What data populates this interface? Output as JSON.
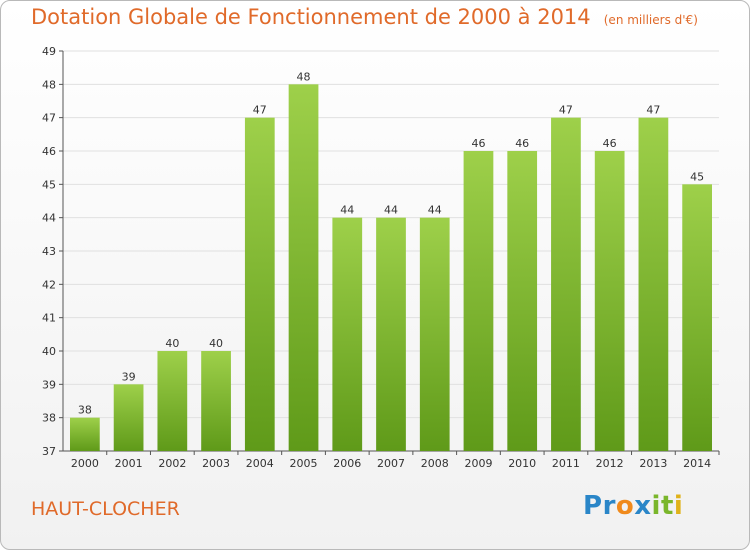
{
  "title": "Dotation Globale de Fonctionnement de 2000 à 2014",
  "subtitle": "(en milliers d'€)",
  "commune": "HAUT-CLOCHER",
  "logo": {
    "text": "Proxiti",
    "letters": [
      {
        "ch": "P",
        "color": "#2a86c8"
      },
      {
        "ch": "r",
        "color": "#2a86c8"
      },
      {
        "ch": "o",
        "color": "#f08a1c"
      },
      {
        "ch": "x",
        "color": "#2a86c8"
      },
      {
        "ch": "i",
        "color": "#7ab62b"
      },
      {
        "ch": "t",
        "color": "#7ab62b"
      },
      {
        "ch": "i",
        "color": "#e0b21a"
      }
    ]
  },
  "colors": {
    "title": "#e06a2a",
    "bar_light": "#9ed04a",
    "bar_dark": "#5f9a19",
    "grid": "#e0e0e0"
  },
  "chart_data": {
    "type": "bar",
    "title": "Dotation Globale de Fonctionnement de 2000 à 2014",
    "subtitle": "(en milliers d'€)",
    "categories": [
      "2000",
      "2001",
      "2002",
      "2003",
      "2004",
      "2005",
      "2006",
      "2007",
      "2008",
      "2009",
      "2010",
      "2011",
      "2012",
      "2013",
      "2014"
    ],
    "values": [
      38,
      39,
      40,
      40,
      47,
      48,
      44,
      44,
      44,
      46,
      46,
      47,
      46,
      47,
      45
    ],
    "ylim": [
      37,
      49
    ],
    "yticks": [
      37,
      38,
      39,
      40,
      41,
      42,
      43,
      44,
      45,
      46,
      47,
      48,
      49
    ],
    "grid": true,
    "legend": "none"
  }
}
